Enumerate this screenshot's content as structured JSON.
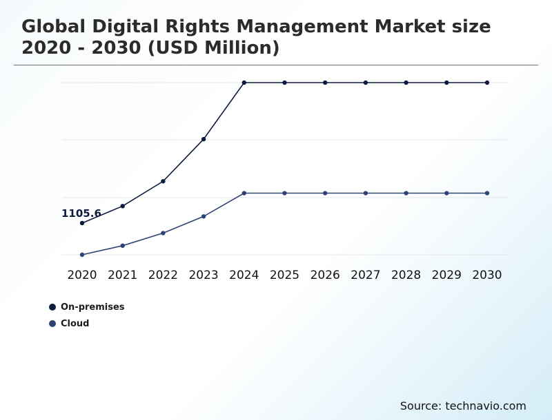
{
  "header": {
    "title": "Global Digital Rights Management Market size 2020 - 2030 (USD Million)"
  },
  "chart_data": {
    "type": "line",
    "title": "Global Digital Rights Management Market size 2020 - 2030 (USD Million)",
    "xlabel": "",
    "ylabel": "",
    "categories": [
      "2020",
      "2021",
      "2022",
      "2023",
      "2024",
      "2025",
      "2026",
      "2027",
      "2028",
      "2029",
      "2030"
    ],
    "series": [
      {
        "name": "On-premises",
        "color": "#0d1b3e",
        "values": [
          1105.6,
          1246,
          1451,
          1799,
          2266,
          2266,
          2266,
          2266,
          2266,
          2266,
          2266
        ]
      },
      {
        "name": "Cloud",
        "color": "#2e4373",
        "values": [
          844,
          919,
          1023,
          1161,
          1353,
          1353,
          1353,
          1353,
          1353,
          1353,
          1353
        ]
      }
    ],
    "ylim": [
      844,
      2266
    ],
    "grid": true,
    "annotations": [
      {
        "series": "On-premises",
        "category": "2020",
        "text": "1105.6"
      }
    ],
    "legend_position": "bottom-left"
  },
  "source": "Source: technavio.com"
}
